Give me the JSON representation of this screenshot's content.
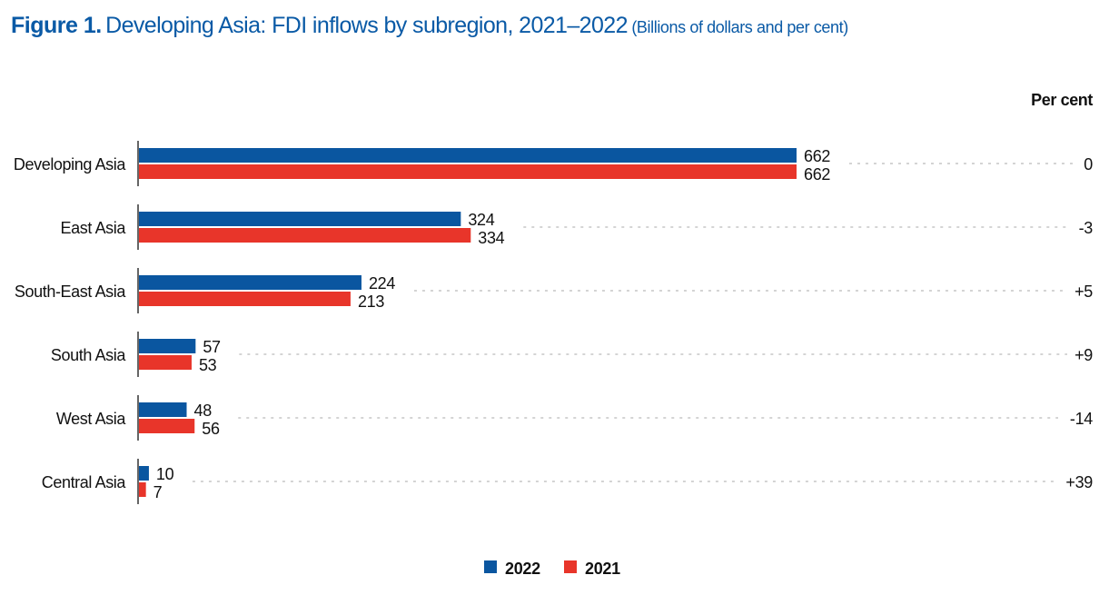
{
  "chart_data": {
    "type": "bar",
    "orientation": "horizontal",
    "title_prefix": "Figure 1.",
    "title": "Developing Asia: FDI inflows by subregion, 2021–2022",
    "subtitle": "(Billions of dollars and per cent)",
    "xlabel": "",
    "ylabel": "",
    "xlim": [
      0,
      662
    ],
    "grid": false,
    "legend_position": "bottom-center",
    "categories": [
      "Developing Asia",
      "East Asia",
      "South-East Asia",
      "South Asia",
      "West Asia",
      "Central Asia"
    ],
    "series": [
      {
        "name": "2022",
        "color": "#0a56a0",
        "values": [
          662,
          324,
          224,
          57,
          48,
          10
        ]
      },
      {
        "name": "2021",
        "color": "#e8352a",
        "values": [
          662,
          334,
          213,
          53,
          56,
          7
        ]
      }
    ],
    "growth_header": "Per cent",
    "growth_labels": [
      "0",
      "-3",
      "+5",
      "+9",
      "-14",
      "+39"
    ]
  }
}
